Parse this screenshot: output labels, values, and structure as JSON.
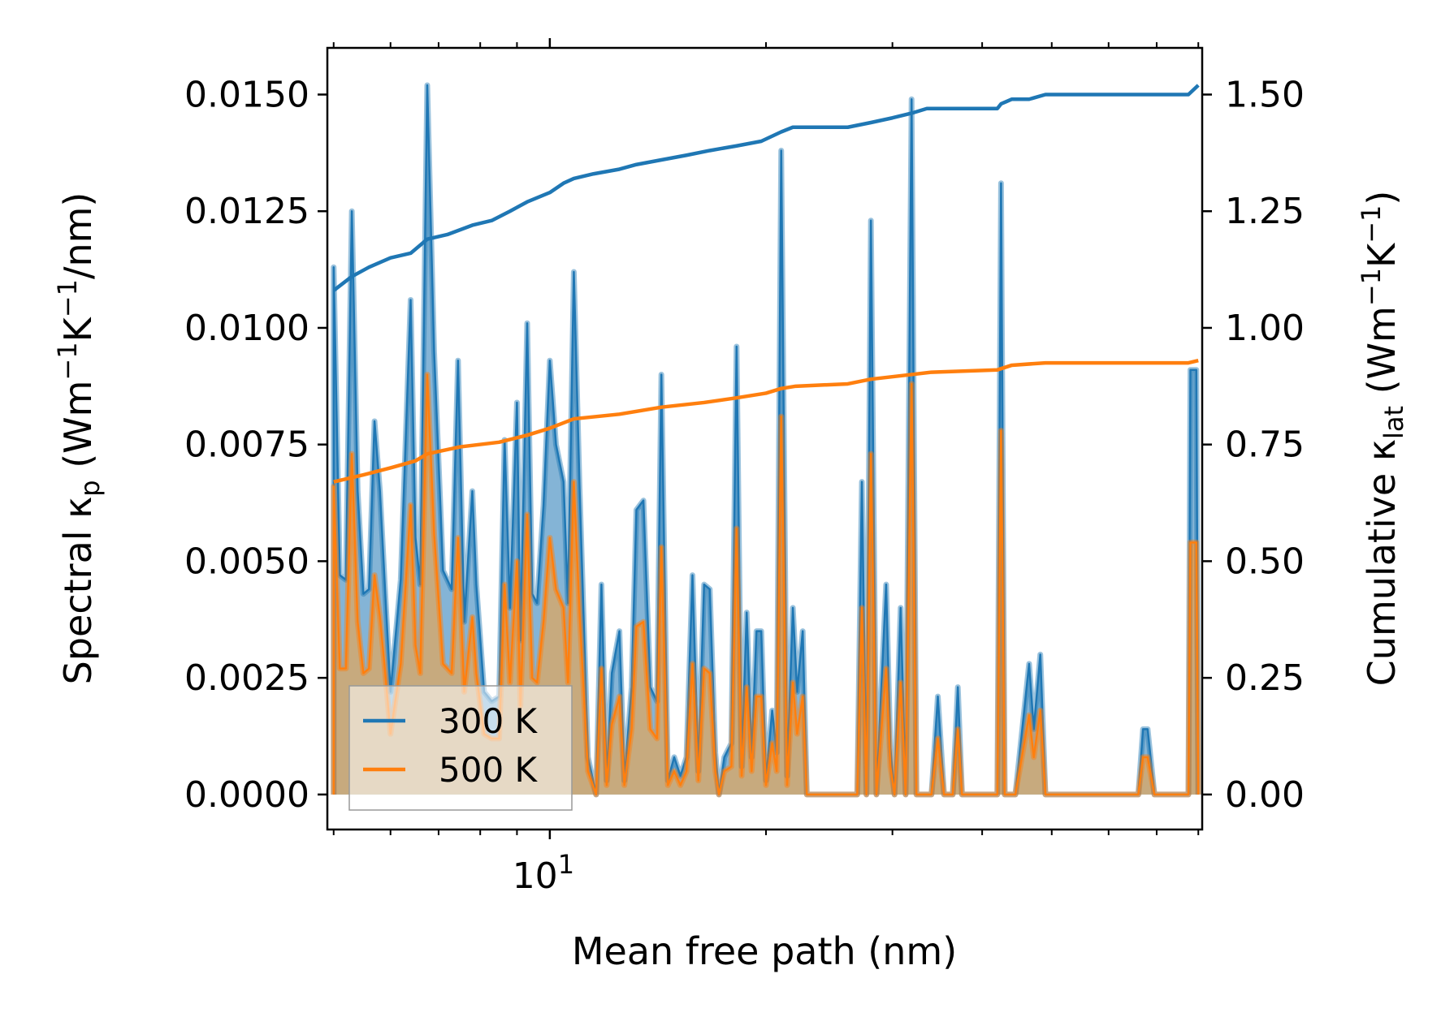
{
  "chart_data": {
    "type": "line",
    "title": "",
    "xlabel": "Mean free path (nm)",
    "xscale": "log",
    "xlim": [
      4.9,
      81
    ],
    "xticks": [
      {
        "value": 10,
        "label": "10",
        "sup": "1"
      }
    ],
    "ylabel_left": {
      "base": "Spectral κ",
      "sub": "p",
      "units": " (Wm",
      "sup1": "−1",
      "mid": "K",
      "sup2": "−1",
      "tail": "/nm)"
    },
    "ylabel_right": {
      "base": "Cumulative κ",
      "sub": "lat",
      "units": " (Wm",
      "sup1": "−1",
      "mid": "K",
      "sup2": "−1",
      "tail": ")"
    },
    "ylim_left": [
      -0.00075,
      0.016
    ],
    "ylim_right": [
      -0.075,
      1.6
    ],
    "yticks_left": [
      "0.0000",
      "0.0025",
      "0.0050",
      "0.0075",
      "0.0100",
      "0.0125",
      "0.0150"
    ],
    "yticks_right": [
      "0.00",
      "0.25",
      "0.50",
      "0.75",
      "1.00",
      "1.25",
      "1.50"
    ],
    "legend": {
      "position": "lower-left",
      "entries": [
        {
          "name": "300 K",
          "color": "#1f77b4"
        },
        {
          "name": "500 K",
          "color": "#ff7f0e"
        }
      ]
    },
    "series": [
      {
        "name": "300 K",
        "color": "#1f77b4",
        "fill_color": "#1f77b4",
        "spectral": [
          [
            5.0,
            0
          ],
          [
            5.0,
            0.0113
          ],
          [
            5.1,
            0.0047
          ],
          [
            5.2,
            0.0046
          ],
          [
            5.3,
            0.0125
          ],
          [
            5.4,
            0.0065
          ],
          [
            5.5,
            0.0043
          ],
          [
            5.6,
            0.0044
          ],
          [
            5.7,
            0.008
          ],
          [
            5.8,
            0.0065
          ],
          [
            5.9,
            0.0043
          ],
          [
            6.0,
            0.0022
          ],
          [
            6.2,
            0.0046
          ],
          [
            6.4,
            0.0106
          ],
          [
            6.5,
            0.0055
          ],
          [
            6.6,
            0.0045
          ],
          [
            6.75,
            0.0152
          ],
          [
            6.9,
            0.0095
          ],
          [
            7.1,
            0.0048
          ],
          [
            7.3,
            0.0044
          ],
          [
            7.45,
            0.0093
          ],
          [
            7.6,
            0.0037
          ],
          [
            7.8,
            0.0065
          ],
          [
            7.9,
            0.0045
          ],
          [
            8.1,
            0.0022
          ],
          [
            8.3,
            0.002
          ],
          [
            8.5,
            0.0021
          ],
          [
            8.65,
            0.0076
          ],
          [
            8.8,
            0.004
          ],
          [
            9.0,
            0.0084
          ],
          [
            9.1,
            0.0033
          ],
          [
            9.3,
            0.0101
          ],
          [
            9.45,
            0.0043
          ],
          [
            9.6,
            0.0041
          ],
          [
            9.8,
            0.0062
          ],
          [
            10.0,
            0.0093
          ],
          [
            10.2,
            0.0075
          ],
          [
            10.45,
            0.0067
          ],
          [
            10.6,
            0.0041
          ],
          [
            10.8,
            0.0112
          ],
          [
            11.0,
            0.0066
          ],
          [
            11.3,
            0.0008
          ],
          [
            11.6,
            0
          ],
          [
            11.8,
            0.0045
          ],
          [
            12.0,
            0.0003
          ],
          [
            12.2,
            0.0026
          ],
          [
            12.5,
            0.0035
          ],
          [
            12.7,
            0.0003
          ],
          [
            13.0,
            0.0023
          ],
          [
            13.2,
            0.0061
          ],
          [
            13.5,
            0.0063
          ],
          [
            13.8,
            0.0023
          ],
          [
            14.1,
            0.002
          ],
          [
            14.3,
            0.009
          ],
          [
            14.6,
            0.0003
          ],
          [
            14.9,
            0.0008
          ],
          [
            15.2,
            0.0004
          ],
          [
            15.5,
            0.0008
          ],
          [
            15.8,
            0.0047
          ],
          [
            16.1,
            0.0005
          ],
          [
            16.4,
            0.0045
          ],
          [
            16.7,
            0.0044
          ],
          [
            17.0,
            0.0009
          ],
          [
            17.2,
            0
          ],
          [
            17.5,
            0.0008
          ],
          [
            17.9,
            0.0011
          ],
          [
            18.2,
            0.0096
          ],
          [
            18.5,
            0.0006
          ],
          [
            18.8,
            0.0039
          ],
          [
            19.1,
            0.0008
          ],
          [
            19.4,
            0.0035
          ],
          [
            19.7,
            0.0035
          ],
          [
            20.0,
            0.0003
          ],
          [
            20.4,
            0.0018
          ],
          [
            20.7,
            0.0009
          ],
          [
            21.0,
            0.0138
          ],
          [
            21.4,
            0.0004
          ],
          [
            21.8,
            0.004
          ],
          [
            22.1,
            0.0022
          ],
          [
            22.5,
            0.0035
          ],
          [
            22.8,
            0
          ],
          [
            26.0,
            0
          ],
          [
            26.8,
            0
          ],
          [
            27.2,
            0.0067
          ],
          [
            27.6,
            0
          ],
          [
            28.0,
            0.0123
          ],
          [
            28.5,
            0
          ],
          [
            29.4,
            0.0045
          ],
          [
            29.8,
            0.001
          ],
          [
            30.2,
            0
          ],
          [
            30.8,
            0.004
          ],
          [
            31.3,
            0
          ],
          [
            31.9,
            0.0149
          ],
          [
            32.4,
            0
          ],
          [
            33.4,
            0
          ],
          [
            34.0,
            0
          ],
          [
            34.7,
            0.0021
          ],
          [
            35.4,
            0
          ],
          [
            36.4,
            0
          ],
          [
            37.0,
            0.0023
          ],
          [
            37.5,
            0
          ],
          [
            42.0,
            0
          ],
          [
            42.5,
            0.0131
          ],
          [
            43.0,
            0
          ],
          [
            44.5,
            0
          ],
          [
            46.5,
            0.0028
          ],
          [
            47.2,
            0.0014
          ],
          [
            48.2,
            0.003
          ],
          [
            49.0,
            0
          ],
          [
            66.0,
            0
          ],
          [
            67.0,
            0.0014
          ],
          [
            68.0,
            0.0014
          ],
          [
            69.5,
            0
          ],
          [
            77.5,
            0
          ],
          [
            78.0,
            0.0091
          ],
          [
            79.5,
            0.0091
          ],
          [
            80.0,
            0
          ]
        ],
        "cumulative": [
          [
            5.0,
            1.08
          ],
          [
            5.3,
            1.11
          ],
          [
            5.6,
            1.13
          ],
          [
            6.0,
            1.15
          ],
          [
            6.4,
            1.16
          ],
          [
            6.75,
            1.19
          ],
          [
            7.2,
            1.2
          ],
          [
            7.8,
            1.22
          ],
          [
            8.3,
            1.23
          ],
          [
            8.8,
            1.25
          ],
          [
            9.3,
            1.27
          ],
          [
            10.0,
            1.29
          ],
          [
            10.45,
            1.31
          ],
          [
            10.8,
            1.32
          ],
          [
            11.5,
            1.33
          ],
          [
            12.5,
            1.34
          ],
          [
            13.2,
            1.35
          ],
          [
            14.3,
            1.36
          ],
          [
            15.5,
            1.37
          ],
          [
            16.7,
            1.38
          ],
          [
            18.2,
            1.39
          ],
          [
            19.7,
            1.4
          ],
          [
            21.0,
            1.42
          ],
          [
            21.8,
            1.43
          ],
          [
            24.0,
            1.43
          ],
          [
            26.0,
            1.43
          ],
          [
            28.0,
            1.44
          ],
          [
            30.0,
            1.45
          ],
          [
            31.9,
            1.46
          ],
          [
            33.5,
            1.47
          ],
          [
            36.0,
            1.47
          ],
          [
            42.0,
            1.47
          ],
          [
            42.5,
            1.48
          ],
          [
            44.0,
            1.49
          ],
          [
            46.5,
            1.49
          ],
          [
            49.0,
            1.5
          ],
          [
            60.0,
            1.5
          ],
          [
            66.0,
            1.5
          ],
          [
            69.0,
            1.5
          ],
          [
            77.5,
            1.5
          ],
          [
            80.0,
            1.52
          ]
        ]
      },
      {
        "name": "500 K",
        "color": "#ff7f0e",
        "fill_color": "#d2a86e",
        "spectral": [
          [
            5.0,
            0
          ],
          [
            5.0,
            0.0066
          ],
          [
            5.1,
            0.0027
          ],
          [
            5.2,
            0.0027
          ],
          [
            5.3,
            0.0073
          ],
          [
            5.4,
            0.0037
          ],
          [
            5.5,
            0.0026
          ],
          [
            5.6,
            0.0027
          ],
          [
            5.7,
            0.0047
          ],
          [
            5.8,
            0.0038
          ],
          [
            5.9,
            0.0026
          ],
          [
            6.0,
            0.0013
          ],
          [
            6.2,
            0.0028
          ],
          [
            6.4,
            0.0062
          ],
          [
            6.5,
            0.0032
          ],
          [
            6.6,
            0.0026
          ],
          [
            6.75,
            0.009
          ],
          [
            6.9,
            0.0056
          ],
          [
            7.1,
            0.0028
          ],
          [
            7.3,
            0.0026
          ],
          [
            7.45,
            0.0055
          ],
          [
            7.6,
            0.0022
          ],
          [
            7.8,
            0.0038
          ],
          [
            7.9,
            0.0026
          ],
          [
            8.1,
            0.0013
          ],
          [
            8.3,
            0.0012
          ],
          [
            8.5,
            0.0012
          ],
          [
            8.65,
            0.0045
          ],
          [
            8.8,
            0.0024
          ],
          [
            9.0,
            0.005
          ],
          [
            9.1,
            0.0019
          ],
          [
            9.3,
            0.006
          ],
          [
            9.45,
            0.0025
          ],
          [
            9.6,
            0.0024
          ],
          [
            9.8,
            0.0037
          ],
          [
            10.0,
            0.0055
          ],
          [
            10.2,
            0.0044
          ],
          [
            10.45,
            0.004
          ],
          [
            10.6,
            0.0024
          ],
          [
            10.8,
            0.0067
          ],
          [
            11.0,
            0.0039
          ],
          [
            11.3,
            0.0005
          ],
          [
            11.6,
            0
          ],
          [
            11.8,
            0.0027
          ],
          [
            12.0,
            0.0002
          ],
          [
            12.2,
            0.0015
          ],
          [
            12.5,
            0.0021
          ],
          [
            12.7,
            0.0002
          ],
          [
            13.0,
            0.0014
          ],
          [
            13.2,
            0.0036
          ],
          [
            13.5,
            0.0037
          ],
          [
            13.8,
            0.0014
          ],
          [
            14.1,
            0.0012
          ],
          [
            14.3,
            0.0053
          ],
          [
            14.6,
            0.0002
          ],
          [
            14.9,
            0.0005
          ],
          [
            15.2,
            0.0002
          ],
          [
            15.5,
            0.0005
          ],
          [
            15.8,
            0.0028
          ],
          [
            16.1,
            0.0003
          ],
          [
            16.4,
            0.0027
          ],
          [
            16.7,
            0.0026
          ],
          [
            17.0,
            0.0005
          ],
          [
            17.2,
            0
          ],
          [
            17.5,
            0.0005
          ],
          [
            17.9,
            0.0006
          ],
          [
            18.2,
            0.0057
          ],
          [
            18.5,
            0.0004
          ],
          [
            18.8,
            0.0023
          ],
          [
            19.1,
            0.0005
          ],
          [
            19.4,
            0.0021
          ],
          [
            19.7,
            0.0021
          ],
          [
            20.0,
            0.0002
          ],
          [
            20.4,
            0.0011
          ],
          [
            20.7,
            0.0005
          ],
          [
            21.0,
            0.0081
          ],
          [
            21.4,
            0.0002
          ],
          [
            21.8,
            0.0024
          ],
          [
            22.1,
            0.0013
          ],
          [
            22.5,
            0.0021
          ],
          [
            22.8,
            0
          ],
          [
            26.0,
            0
          ],
          [
            26.8,
            0
          ],
          [
            27.2,
            0.004
          ],
          [
            27.6,
            0
          ],
          [
            28.0,
            0.0073
          ],
          [
            28.5,
            0
          ],
          [
            29.4,
            0.0027
          ],
          [
            29.8,
            0.0006
          ],
          [
            30.2,
            0
          ],
          [
            30.8,
            0.0024
          ],
          [
            31.3,
            0
          ],
          [
            31.9,
            0.0088
          ],
          [
            32.4,
            0
          ],
          [
            33.4,
            0
          ],
          [
            34.0,
            0
          ],
          [
            34.7,
            0.0012
          ],
          [
            35.4,
            0
          ],
          [
            36.4,
            0
          ],
          [
            37.0,
            0.0014
          ],
          [
            37.5,
            0
          ],
          [
            42.0,
            0
          ],
          [
            42.5,
            0.0078
          ],
          [
            43.0,
            0
          ],
          [
            44.5,
            0
          ],
          [
            46.5,
            0.0017
          ],
          [
            47.2,
            0.0008
          ],
          [
            48.2,
            0.0018
          ],
          [
            49.0,
            0
          ],
          [
            66.0,
            0
          ],
          [
            67.0,
            0.0008
          ],
          [
            68.0,
            0.0008
          ],
          [
            69.5,
            0
          ],
          [
            77.5,
            0
          ],
          [
            78.0,
            0.0054
          ],
          [
            79.5,
            0.0054
          ],
          [
            80.0,
            0
          ]
        ],
        "cumulative": [
          [
            5.0,
            0.67
          ],
          [
            5.5,
            0.685
          ],
          [
            6.0,
            0.7
          ],
          [
            6.5,
            0.715
          ],
          [
            6.75,
            0.73
          ],
          [
            7.5,
            0.745
          ],
          [
            8.5,
            0.755
          ],
          [
            9.3,
            0.77
          ],
          [
            10.0,
            0.785
          ],
          [
            10.8,
            0.805
          ],
          [
            12.5,
            0.815
          ],
          [
            14.3,
            0.83
          ],
          [
            16.4,
            0.84
          ],
          [
            18.2,
            0.85
          ],
          [
            20.0,
            0.86
          ],
          [
            21.0,
            0.87
          ],
          [
            22.0,
            0.875
          ],
          [
            26.0,
            0.88
          ],
          [
            28.0,
            0.89
          ],
          [
            31.9,
            0.9
          ],
          [
            34.0,
            0.905
          ],
          [
            42.0,
            0.91
          ],
          [
            44.0,
            0.92
          ],
          [
            49.0,
            0.925
          ],
          [
            60.0,
            0.925
          ],
          [
            77.5,
            0.925
          ],
          [
            80.0,
            0.93
          ]
        ]
      }
    ]
  }
}
